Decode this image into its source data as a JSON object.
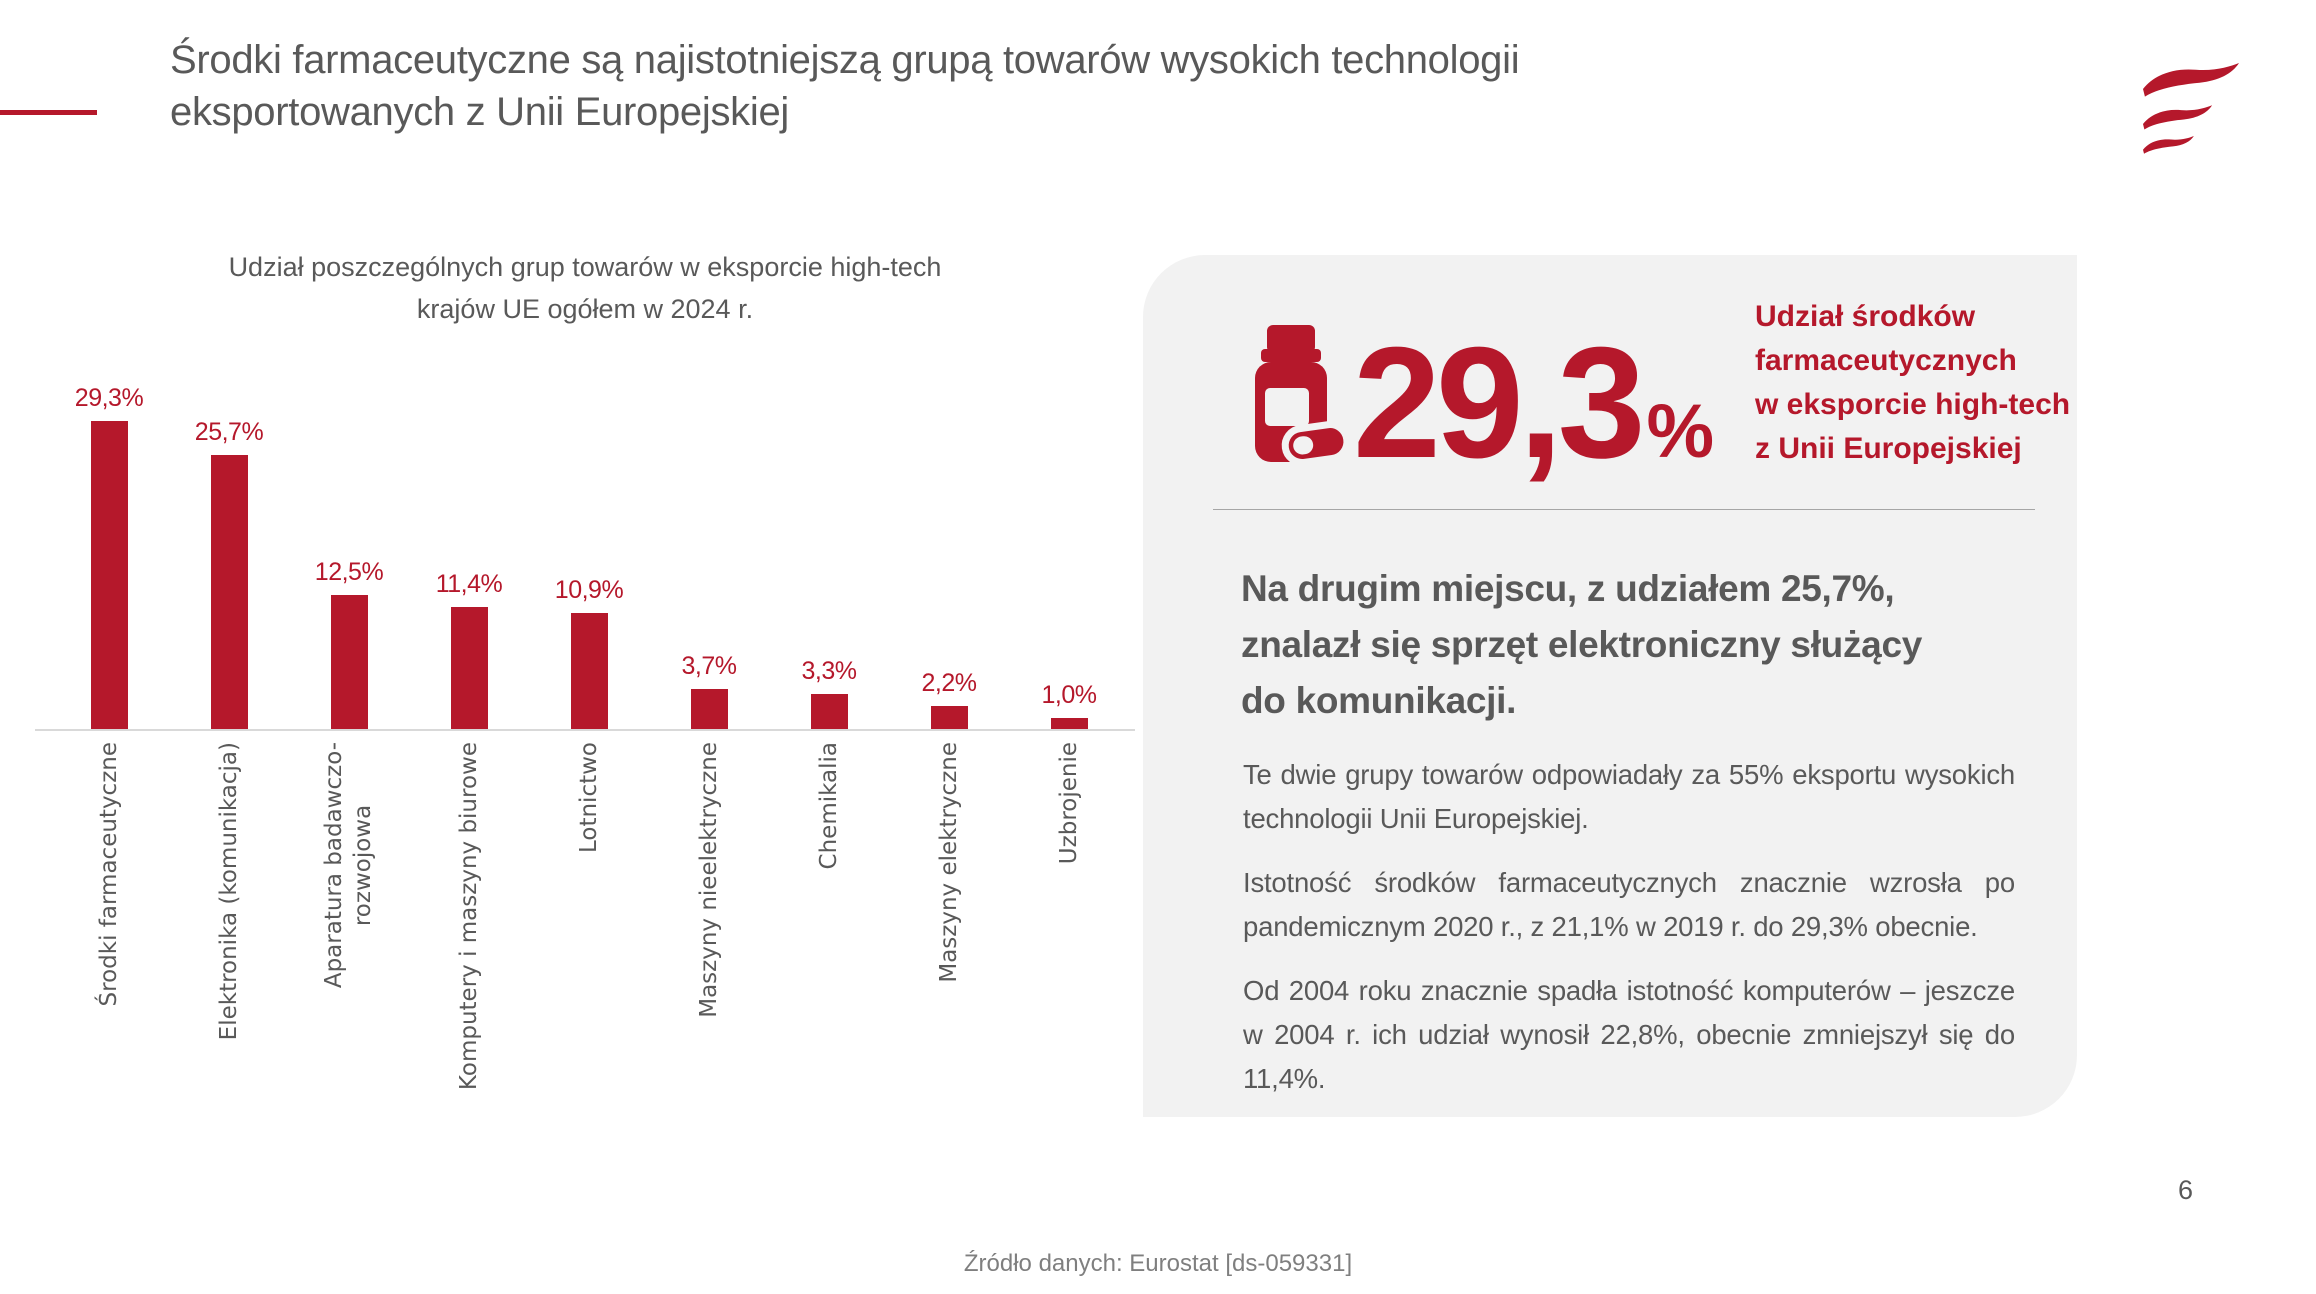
{
  "slide": {
    "title": "Środki farmaceutyczne są najistotniejszą grupą towarów wysokich technologii\neksportowanych z Unii Europejskiej",
    "page_number": "6",
    "footer_source": "Źródło danych: Eurostat [ds-059331]"
  },
  "colors": {
    "brand_red": "#b5182b",
    "text_gray": "#595959",
    "panel_bg": "#f2f2f2",
    "axis_gray": "#d9d9d9"
  },
  "chart_data": {
    "type": "bar",
    "title": "Udział poszczególnych grup towarów w eksporcie high-tech\nkrajów UE ogółem w 2024 r.",
    "categories": [
      "Środki farmaceutyczne",
      "Elektronika (komunikacja)",
      "Aparatura badawczo-\nrozwojowa",
      "Komputery i maszyny biurowe",
      "Lotnictwo",
      "Maszyny nieelektryczne",
      "Chemikalia",
      "Maszyny elektryczne",
      "Uzbrojenie"
    ],
    "values": [
      29.3,
      25.7,
      12.5,
      11.4,
      10.9,
      3.7,
      3.3,
      2.2,
      1.0
    ],
    "value_labels": [
      "29,3%",
      "25,7%",
      "12,5%",
      "11,4%",
      "10,9%",
      "3,7%",
      "3,3%",
      "2,2%",
      "1,0%"
    ],
    "xlabel": "",
    "ylabel": "",
    "ylim": [
      0,
      30
    ],
    "grid": false,
    "legend": false,
    "bar_color": "#b5182b",
    "category_labels_rotated": "90deg-bottom-to-top"
  },
  "highlight_panel": {
    "icon": "pill-bottle-icon",
    "big_value": "29,3",
    "big_value_suffix": "%",
    "heading": "Udział środków\nfarmaceutycznych\nw eksporcie high-tech\nz Unii Europejskiej",
    "statement": "Na drugim miejscu, z udziałem 25,7%,\nznalazł się sprzęt elektroniczny służący\ndo komunikacji.",
    "paragraphs": [
      "Te dwie grupy towarów odpowiadały za 55% eksportu wysokich technologii Unii Europejskiej.",
      "Istotność środków farmaceutycznych znacznie wzrosła po pandemicznym 2020 r., z 21,1% w 2019 r. do 29,3% obecnie.",
      "Od 2004 roku znacznie spadła istotność komputerów – jeszcze w 2004 r. ich udział wynosił 22,8%, obecnie zmniejszył się do 11,4%."
    ]
  }
}
